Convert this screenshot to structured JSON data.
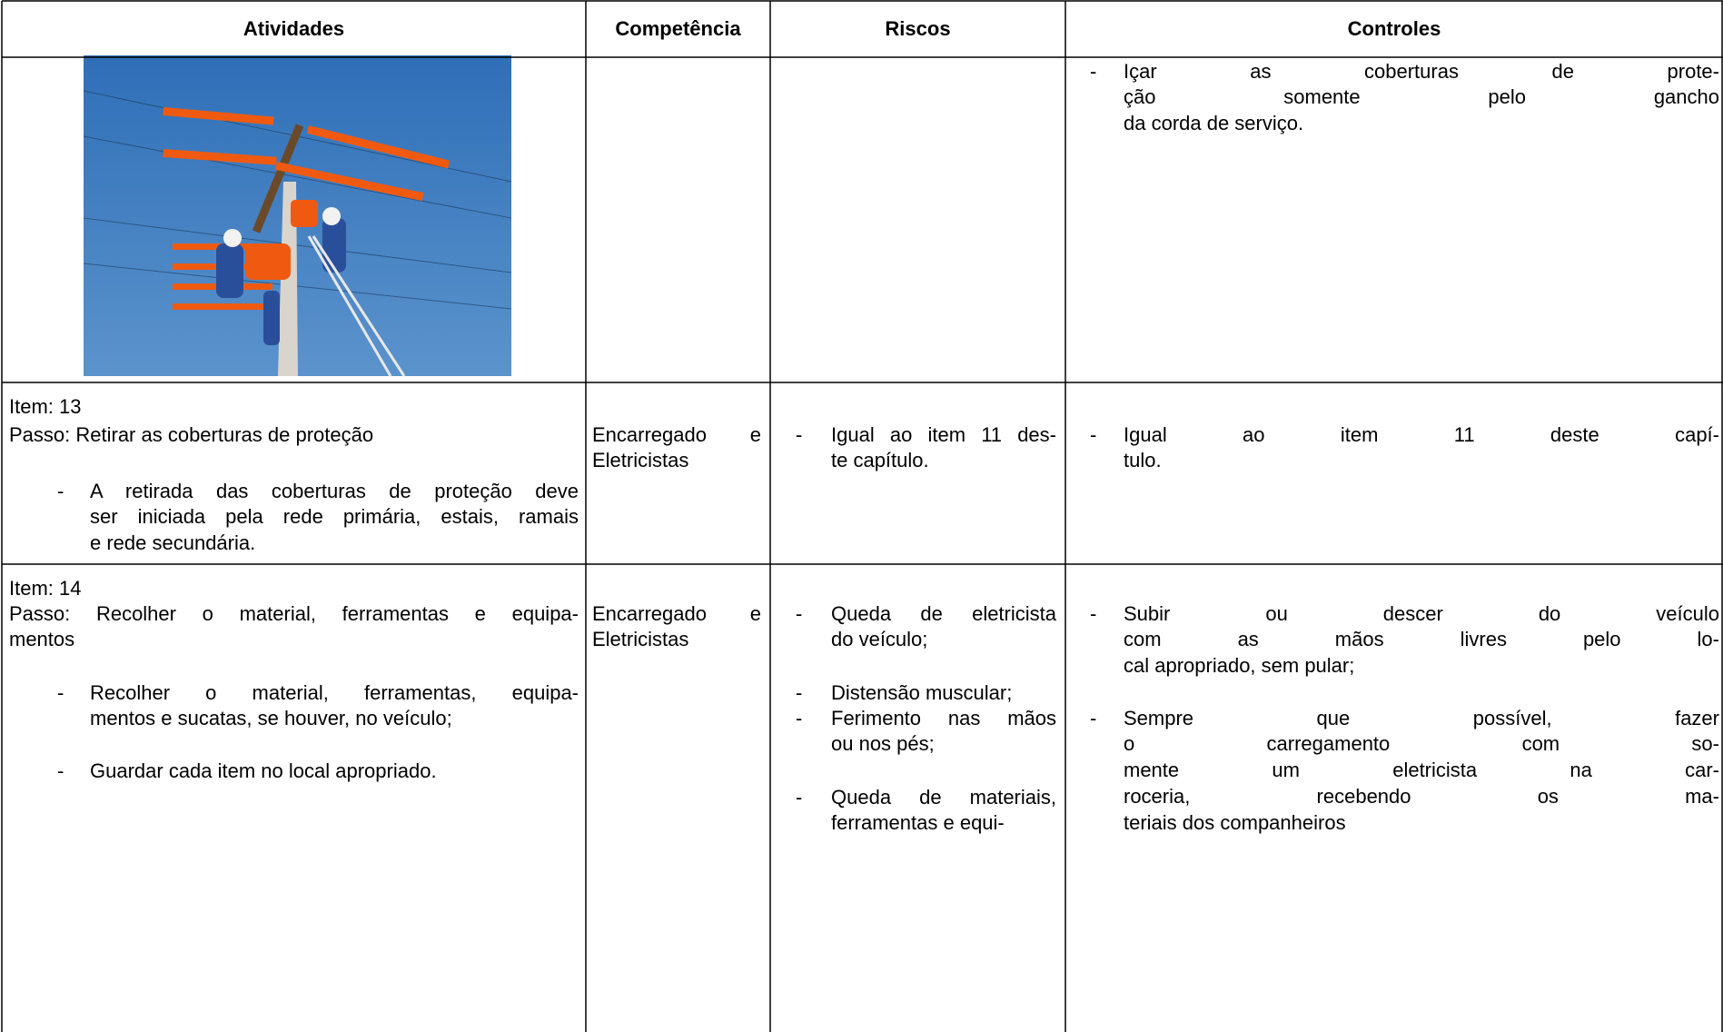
{
  "table": {
    "header": [
      "Atividades",
      "Competência",
      "Riscos",
      "Controles"
    ],
    "rows": [
      [
        [],
        [],
        [],
        [
          {
            "bullet": "-",
            "lines": [
              "Içar as coberturas de prote-",
              "ção somente pelo gancho",
              "da corda de serviço."
            ]
          }
        ]
      ],
      [
        [
          {
            "lines": [
              "Item: 13"
            ]
          },
          {
            "lines": [
              "Passo: Retirar as coberturas de proteção"
            ]
          },
          {
            "bullet": "-",
            "lines": [
              "A retirada das coberturas de proteção deve",
              "ser iniciada pela rede primária, estais, ramais",
              "e rede secundária."
            ]
          }
        ],
        [
          {
            "lines": [
              "Encarregado e",
              "Eletricistas"
            ]
          }
        ],
        [
          {
            "bullet": "-",
            "lines": [
              "Igual ao item 11 des-",
              "te capítulo."
            ]
          }
        ],
        [
          {
            "bullet": "-",
            "lines": [
              "Igual ao item 11 deste capí-",
              "tulo."
            ]
          }
        ]
      ],
      [
        [
          {
            "lines": [
              "Item: 14"
            ]
          },
          {
            "lines": [
              "Passo: Recolher o material, ferramentas e equipa-",
              "mentos"
            ]
          },
          {
            "bullet": "-",
            "lines": [
              "Recolher o material, ferramentas, equipa-",
              "mentos e sucatas, se houver, no veículo;"
            ]
          },
          {
            "bullet": "-",
            "lines": [
              "Guardar cada item no local apropriado."
            ]
          }
        ],
        [
          {
            "lines": [
              "Encarregado e",
              "Eletricistas"
            ]
          }
        ],
        [
          {
            "bullet": "-",
            "lines": [
              "Queda de eletricista",
              "do veículo;"
            ]
          },
          {
            "bullet": "-",
            "lines": [
              "Distensão muscular;"
            ]
          },
          {
            "bullet": "-",
            "lines": [
              "Ferimento nas mãos",
              "ou nos pés;"
            ]
          },
          {
            "bullet": "-",
            "lines": [
              "Queda de materiais,",
              "ferramentas e equi-"
            ]
          }
        ],
        [
          {
            "bullet": "-",
            "lines": [
              "Subir ou descer do veículo",
              "com as mãos livres pelo lo-",
              "cal apropriado, sem pular;"
            ]
          },
          {
            "bullet": "-",
            "lines": [
              "Sempre que possível, fazer",
              "o carregamento com so-",
              "mente um eletricista na car-",
              "roceria, recebendo os ma-",
              "teriais dos companheiros"
            ]
          }
        ]
      ]
    ]
  }
}
